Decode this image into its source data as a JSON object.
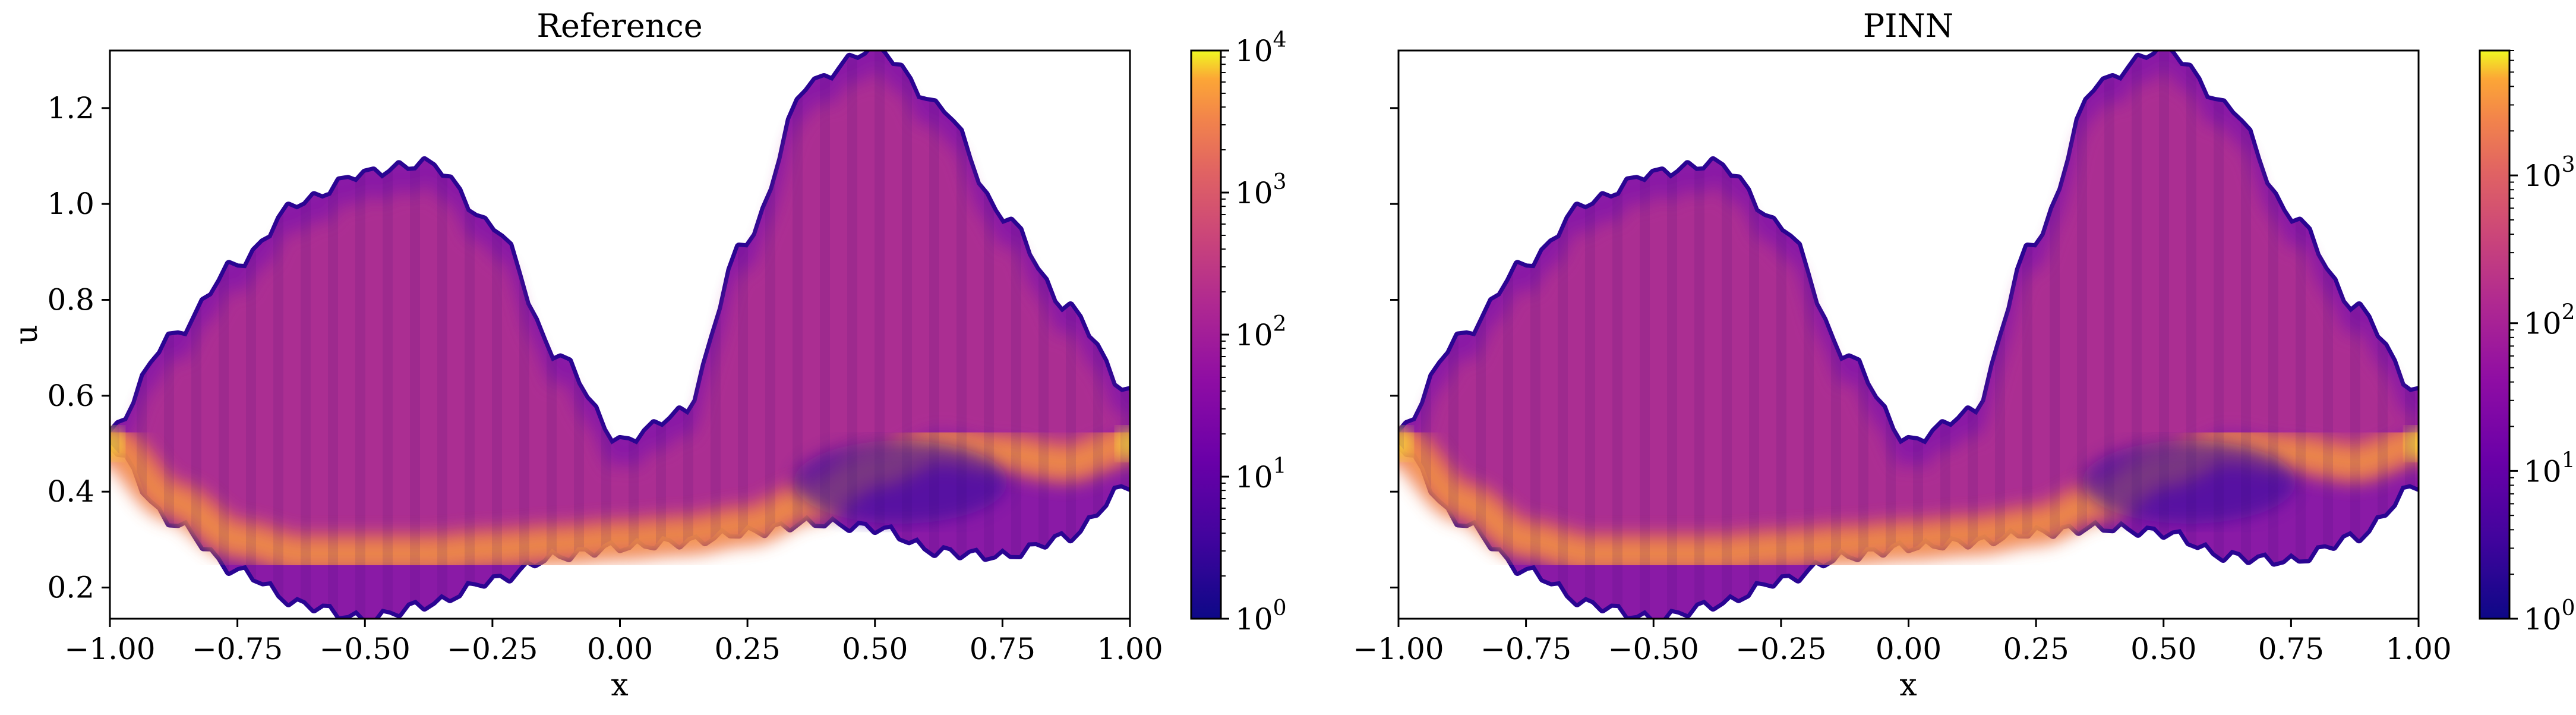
{
  "chart_data": [
    {
      "type": "heatmap",
      "title": "Reference",
      "xlabel": "x",
      "ylabel": "u",
      "xlim": [
        -1.0,
        1.0
      ],
      "ylim": [
        0.135,
        1.32
      ],
      "xticks": [
        -1.0,
        -0.75,
        -0.5,
        -0.25,
        0.0,
        0.25,
        0.5,
        0.75,
        1.0
      ],
      "xtick_labels": [
        "−1.00",
        "−0.75",
        "−0.50",
        "−0.25",
        "0.00",
        "0.25",
        "0.50",
        "0.75",
        "1.00"
      ],
      "yticks": [
        0.2,
        0.4,
        0.6,
        0.8,
        1.0,
        1.2
      ],
      "ytick_labels": [
        "0.2",
        "0.4",
        "0.6",
        "0.8",
        "1.0",
        "1.2"
      ],
      "colormap": "plasma",
      "color_scale": "log",
      "colorbar": {
        "range": [
          1,
          10000
        ],
        "ticks": [
          1,
          10,
          100,
          1000,
          10000
        ],
        "tick_labels": [
          {
            "base": "10",
            "exp": "0"
          },
          {
            "base": "10",
            "exp": "1"
          },
          {
            "base": "10",
            "exp": "2"
          },
          {
            "base": "10",
            "exp": "3"
          },
          {
            "base": "10",
            "exp": "4"
          }
        ]
      },
      "density_envelope": {
        "x": [
          -1.0,
          -0.875,
          -0.75,
          -0.625,
          -0.5,
          -0.375,
          -0.25,
          -0.125,
          0.0,
          0.125,
          0.25,
          0.375,
          0.5,
          0.625,
          0.75,
          0.875,
          1.0
        ],
        "upper_u": [
          0.52,
          0.72,
          0.87,
          1.0,
          1.06,
          1.08,
          0.95,
          0.68,
          0.5,
          0.56,
          0.92,
          1.25,
          1.32,
          1.2,
          0.97,
          0.78,
          0.6
        ],
        "lower_u": [
          0.5,
          0.34,
          0.24,
          0.17,
          0.14,
          0.17,
          0.22,
          0.27,
          0.29,
          0.3,
          0.32,
          0.34,
          0.33,
          0.28,
          0.27,
          0.31,
          0.42
        ],
        "peak_density_u": [
          0.5,
          0.38,
          0.3,
          0.27,
          0.27,
          0.27,
          0.28,
          0.29,
          0.3,
          0.31,
          0.33,
          0.38,
          0.45,
          0.5,
          0.48,
          0.46,
          0.5
        ]
      }
    },
    {
      "type": "heatmap",
      "title": "PINN",
      "xlabel": "x",
      "ylabel": "",
      "xlim": [
        -1.0,
        1.0
      ],
      "ylim": [
        0.135,
        1.32
      ],
      "xticks": [
        -1.0,
        -0.75,
        -0.5,
        -0.25,
        0.0,
        0.25,
        0.5,
        0.75,
        1.0
      ],
      "xtick_labels": [
        "−1.00",
        "−0.75",
        "−0.50",
        "−0.25",
        "0.00",
        "0.25",
        "0.50",
        "0.75",
        "1.00"
      ],
      "yticks": [
        0.2,
        0.4,
        0.6,
        0.8,
        1.0,
        1.2
      ],
      "colormap": "plasma",
      "color_scale": "log",
      "colorbar": {
        "range": [
          1,
          7000
        ],
        "ticks": [
          1,
          10,
          100,
          1000
        ],
        "tick_labels": [
          {
            "base": "10",
            "exp": "0"
          },
          {
            "base": "10",
            "exp": "1"
          },
          {
            "base": "10",
            "exp": "2"
          },
          {
            "base": "10",
            "exp": "3"
          }
        ]
      },
      "density_envelope": {
        "x": [
          -1.0,
          -0.875,
          -0.75,
          -0.625,
          -0.5,
          -0.375,
          -0.25,
          -0.125,
          0.0,
          0.125,
          0.25,
          0.375,
          0.5,
          0.625,
          0.75,
          0.875,
          1.0
        ],
        "upper_u": [
          0.52,
          0.72,
          0.87,
          1.0,
          1.06,
          1.08,
          0.95,
          0.68,
          0.5,
          0.56,
          0.92,
          1.25,
          1.32,
          1.2,
          0.97,
          0.78,
          0.6
        ],
        "lower_u": [
          0.5,
          0.34,
          0.24,
          0.17,
          0.14,
          0.17,
          0.22,
          0.27,
          0.29,
          0.3,
          0.32,
          0.33,
          0.32,
          0.27,
          0.26,
          0.31,
          0.42
        ],
        "peak_density_u": [
          0.5,
          0.38,
          0.3,
          0.27,
          0.27,
          0.27,
          0.28,
          0.29,
          0.3,
          0.31,
          0.33,
          0.38,
          0.45,
          0.5,
          0.48,
          0.46,
          0.5
        ]
      }
    }
  ]
}
